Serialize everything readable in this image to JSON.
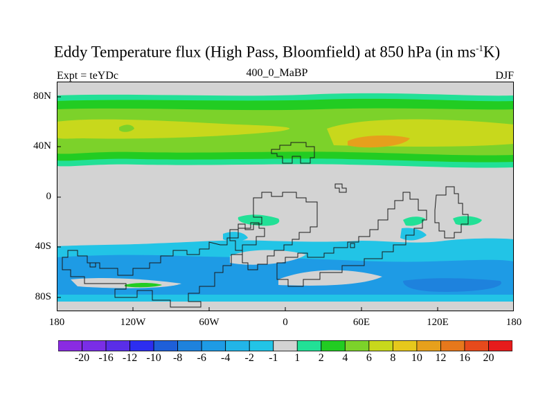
{
  "title_main": "Eddy Temperature flux (High Pass, Bloomfield) at 850 hPa (in ms",
  "title_sup": "-1",
  "title_tail": "K)",
  "subtitle_left": "Expt = teYDc",
  "subtitle_center": "400_0_MaBP",
  "subtitle_right": "DJF",
  "y_ticks": [
    "80N",
    "40N",
    "0",
    "40S",
    "80S"
  ],
  "x_ticks": [
    "180",
    "120W",
    "60W",
    "0",
    "60E",
    "120E",
    "180"
  ],
  "colorbar": {
    "labels": [
      "-20",
      "-16",
      "-12",
      "-10",
      "-8",
      "-6",
      "-4",
      "-2",
      "-1",
      "1",
      "2",
      "4",
      "6",
      "8",
      "10",
      "12",
      "16",
      "20"
    ],
    "colors": [
      "#8a2be2",
      "#7a2ee6",
      "#5a2ee8",
      "#2c2ef0",
      "#1e5fd8",
      "#1e82dd",
      "#1e9be5",
      "#22b5e8",
      "#22c4e6",
      "#d3d3d3",
      "#22e096",
      "#22cc22",
      "#7cd22a",
      "#c8d81c",
      "#e6c81c",
      "#e6a01c",
      "#e6781c",
      "#e64a1c",
      "#e61c1c"
    ]
  },
  "colors": {
    "land_grey": "#d3d3d3",
    "green_light": "#7cd22a",
    "green": "#22cc22",
    "yellow": "#c8d81c",
    "orange": "#e6a01c",
    "cyan": "#22b5e8",
    "blue": "#1e9be5",
    "teal": "#22e096"
  }
}
